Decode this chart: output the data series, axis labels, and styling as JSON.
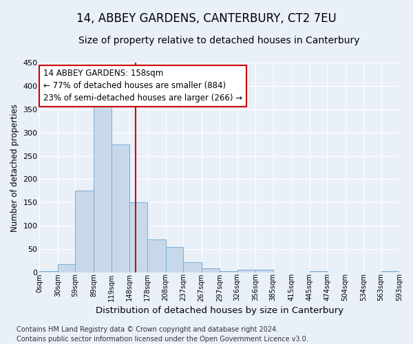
{
  "title": "14, ABBEY GARDENS, CANTERBURY, CT2 7EU",
  "subtitle": "Size of property relative to detached houses in Canterbury",
  "xlabel": "Distribution of detached houses by size in Canterbury",
  "ylabel": "Number of detached properties",
  "bin_labels": [
    "0sqm",
    "30sqm",
    "59sqm",
    "89sqm",
    "119sqm",
    "148sqm",
    "178sqm",
    "208sqm",
    "237sqm",
    "267sqm",
    "297sqm",
    "326sqm",
    "356sqm",
    "385sqm",
    "415sqm",
    "445sqm",
    "474sqm",
    "504sqm",
    "534sqm",
    "563sqm",
    "593sqm"
  ],
  "bar_heights": [
    2,
    18,
    175,
    365,
    275,
    150,
    70,
    55,
    22,
    9,
    2,
    5,
    6,
    0,
    0,
    2,
    0,
    0,
    0,
    2
  ],
  "bar_color": "#c8d8eb",
  "bar_edge_color": "#7aafd4",
  "bin_edges": [
    0,
    30,
    59,
    89,
    119,
    148,
    178,
    208,
    237,
    267,
    297,
    326,
    356,
    385,
    415,
    445,
    474,
    504,
    534,
    563,
    593
  ],
  "property_value": 158,
  "vline_color": "#cc0000",
  "annotation_line1": "14 ABBEY GARDENS: 158sqm",
  "annotation_line2": "← 77% of detached houses are smaller (884)",
  "annotation_line3": "23% of semi-detached houses are larger (266) →",
  "annotation_box_color": "#ffffff",
  "annotation_border_color": "#cc0000",
  "ylim": [
    0,
    450
  ],
  "yticks": [
    0,
    50,
    100,
    150,
    200,
    250,
    300,
    350,
    400,
    450
  ],
  "background_color": "#eaf0f8",
  "grid_color": "#ffffff",
  "footer": "Contains HM Land Registry data © Crown copyright and database right 2024.\nContains public sector information licensed under the Open Government Licence v3.0.",
  "title_fontsize": 12,
  "subtitle_fontsize": 10,
  "xlabel_fontsize": 9.5,
  "ylabel_fontsize": 8.5,
  "annotation_fontsize": 8.5,
  "footer_fontsize": 7
}
